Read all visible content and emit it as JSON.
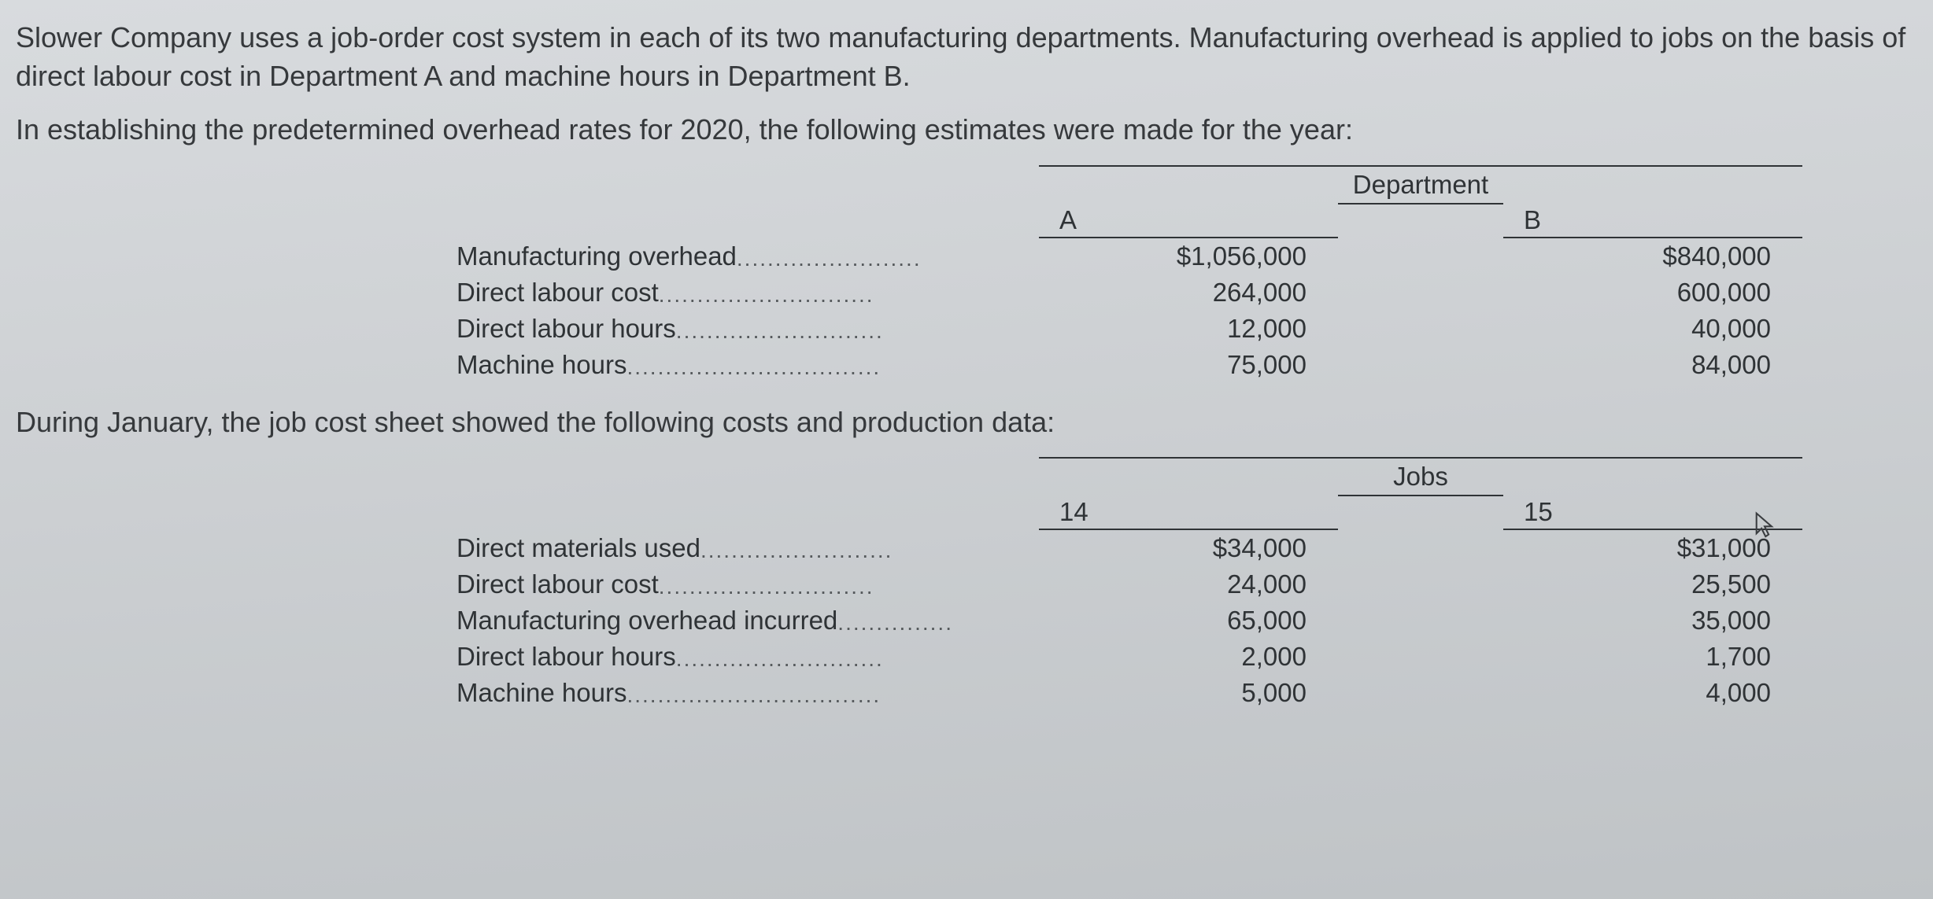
{
  "paragraphs": {
    "p1": "Slower Company uses a job-order cost system in each of its two manufacturing departments. Manufacturing overhead is applied to jobs on the basis of direct labour cost in Department A and machine hours in Department B.",
    "p2": "In establishing the predetermined overhead rates for 2020, the following estimates were made for the year:",
    "p3": "During January, the job cost sheet showed the following costs and production data:"
  },
  "table1": {
    "group_header": "Department",
    "col_a": "A",
    "col_b": "B",
    "rows": [
      {
        "label": "Manufacturing overhead",
        "a": "$1,056,000",
        "b": "$840,000"
      },
      {
        "label": "Direct labour cost",
        "a": "264,000",
        "b": "600,000"
      },
      {
        "label": "Direct labour hours",
        "a": "12,000",
        "b": "40,000"
      },
      {
        "label": "Machine hours",
        "a": "75,000",
        "b": "84,000"
      }
    ]
  },
  "table2": {
    "group_header": "Jobs",
    "col_a": "14",
    "col_b": "15",
    "rows": [
      {
        "label": "Direct materials used",
        "a": "$34,000",
        "b": "$31,000"
      },
      {
        "label": "Direct labour cost",
        "a": "24,000",
        "b": "25,500"
      },
      {
        "label": "Manufacturing overhead incurred",
        "a": "65,000",
        "b": "35,000"
      },
      {
        "label": "Direct labour hours",
        "a": "2,000",
        "b": "1,700"
      },
      {
        "label": "Machine hours",
        "a": "5,000",
        "b": "4,000"
      }
    ]
  }
}
